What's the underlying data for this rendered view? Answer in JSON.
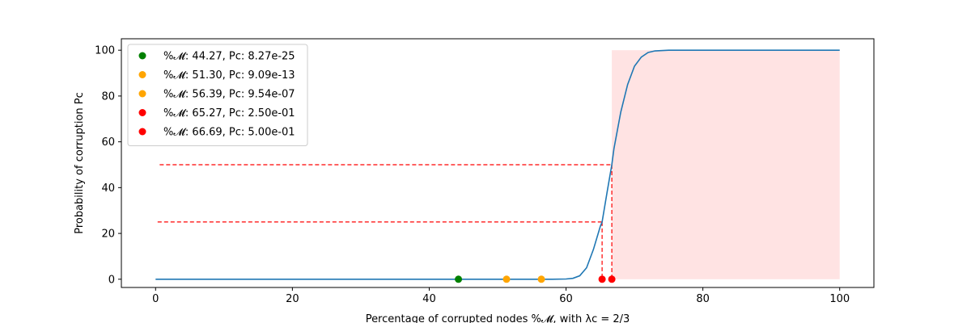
{
  "chart_data": {
    "type": "line",
    "title": "",
    "xlabel": "Percentage of corrupted nodes %𝓜, with λc = 2/3",
    "ylabel": "Probability of corruption Pc",
    "xlim": [
      -5,
      105
    ],
    "ylim": [
      -3.6,
      105
    ],
    "xticks": [
      0,
      20,
      40,
      60,
      80,
      100
    ],
    "yticks": [
      0,
      20,
      40,
      60,
      80,
      100
    ],
    "grid": false,
    "legend_position": "upper-left",
    "curve": {
      "color": "#1f77b4",
      "x": [
        0,
        10,
        20,
        30,
        40,
        50,
        55,
        58,
        60,
        61,
        62,
        63,
        64,
        65,
        65.27,
        66,
        66.69,
        67,
        68,
        69,
        70,
        71,
        72,
        73,
        75,
        80,
        90,
        100
      ],
      "y": [
        0,
        0,
        0,
        0,
        0,
        0,
        0,
        0,
        0.1,
        0.4,
        1.5,
        5,
        13,
        23,
        25,
        38,
        50,
        57,
        73,
        85,
        93,
        97,
        99,
        99.7,
        100,
        100,
        100,
        100
      ]
    },
    "shaded_region": {
      "x_start": 66.69,
      "x_end": 100,
      "y_top": 100,
      "color": "#ffcccc"
    },
    "points": [
      {
        "x": 44.27,
        "y": 0,
        "color": "#008000",
        "label": "%𝓜: 44.27, Pc: 8.27e-25"
      },
      {
        "x": 51.3,
        "y": 0,
        "color": "#ffa500",
        "label": "%𝓜: 51.30, Pc: 9.09e-13"
      },
      {
        "x": 56.39,
        "y": 0,
        "color": "#ffa500",
        "label": "%𝓜: 56.39, Pc: 9.54e-07"
      },
      {
        "x": 65.27,
        "y": 0,
        "color": "#ff0000",
        "label": "%𝓜: 65.27, Pc: 2.50e-01"
      },
      {
        "x": 66.69,
        "y": 0,
        "color": "#ff0000",
        "label": "%𝓜: 66.69, Pc: 5.00e-01"
      }
    ],
    "reference_lines": [
      {
        "y": 25,
        "x_start": 0.3,
        "x_end": 65.27,
        "color": "#ff0000"
      },
      {
        "y": 50,
        "x_start": 0.6,
        "x_end": 66.69,
        "color": "#ff0000"
      }
    ]
  }
}
